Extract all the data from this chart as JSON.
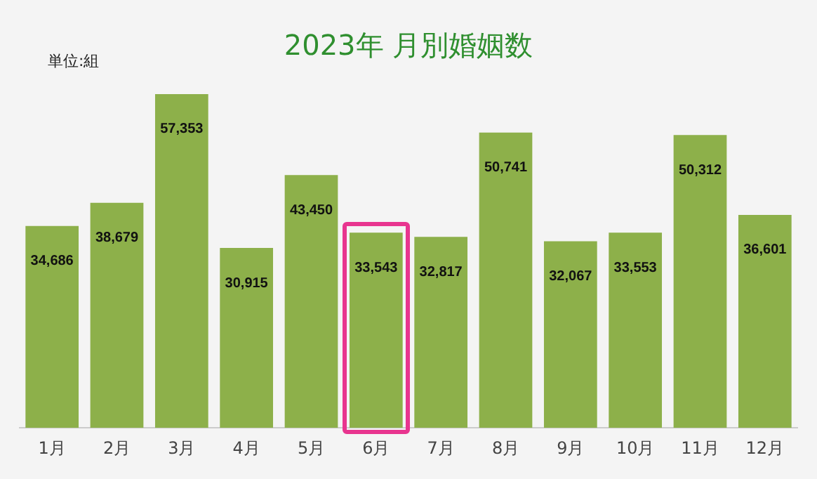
{
  "chart_data": {
    "type": "bar",
    "title": "2023年 月別婚姻数",
    "annotations": [
      "単位:組"
    ],
    "categories": [
      "1月",
      "2月",
      "3月",
      "4月",
      "5月",
      "6月",
      "7月",
      "8月",
      "9月",
      "10月",
      "11月",
      "12月"
    ],
    "values": [
      34686,
      38679,
      57353,
      30915,
      43450,
      33543,
      32817,
      50741,
      32067,
      33553,
      50312,
      36601
    ],
    "value_labels": [
      "34,686",
      "38,679",
      "57,353",
      "30,915",
      "43,450",
      "33,543",
      "32,817",
      "50,741",
      "32,067",
      "33,553",
      "50,312",
      "36,601"
    ],
    "color": "#8db04a",
    "grid": false,
    "legend": false,
    "tick_labels": "x"
  }
}
